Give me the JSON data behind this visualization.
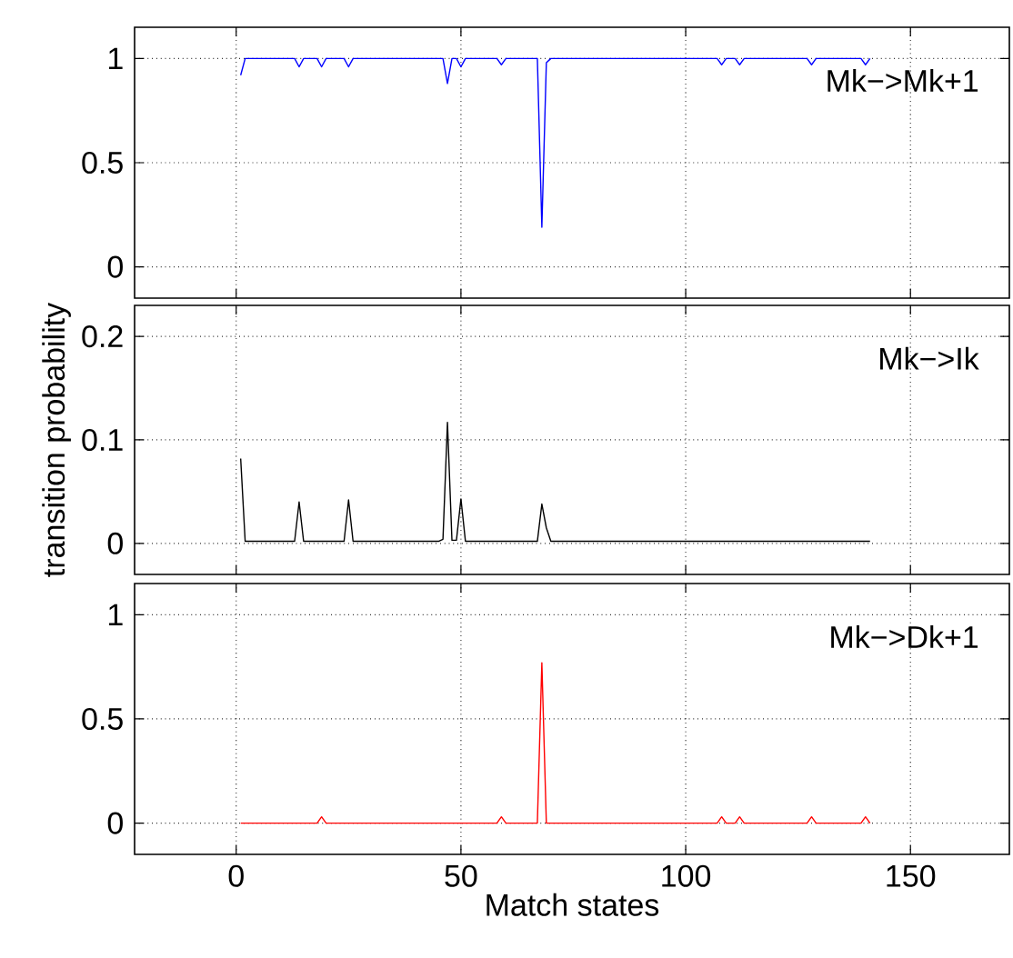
{
  "chart_data": [
    {
      "type": "line",
      "x": [
        1,
        2,
        13,
        14,
        15,
        18,
        19,
        20,
        24,
        25,
        26,
        46,
        47,
        48,
        49,
        50,
        51,
        58,
        59,
        60,
        67,
        68,
        69,
        70,
        107,
        108,
        109,
        111,
        112,
        113,
        127,
        128,
        129,
        139,
        140,
        141
      ],
      "series": [
        {
          "color": "#0000ff",
          "values": [
            0.92,
            1,
            1,
            0.96,
            1,
            1,
            0.96,
            1,
            1,
            0.96,
            1,
            1,
            0.88,
            1,
            1,
            0.96,
            1,
            1,
            0.97,
            1,
            1,
            0.19,
            0.98,
            1,
            1,
            0.97,
            1,
            1,
            0.97,
            1,
            1,
            0.97,
            1,
            1,
            0.97,
            1
          ]
        }
      ],
      "annotations": [
        "Mk−>Mk+1"
      ],
      "xlim": [
        -22.6,
        172
      ],
      "xticks": [
        0,
        50,
        100,
        150
      ],
      "ylim": [
        -0.15,
        1.15
      ],
      "yticks": [
        0,
        0.5,
        1
      ],
      "grid": true,
      "tick_labels": "y"
    },
    {
      "type": "line",
      "x": [
        1,
        2,
        13,
        14,
        15,
        24,
        25,
        26,
        45,
        46,
        47,
        48,
        49,
        50,
        51,
        67,
        68,
        69,
        70,
        141
      ],
      "series": [
        {
          "color": "#000000",
          "values": [
            0.082,
            0.002,
            0.002,
            0.04,
            0.002,
            0.002,
            0.042,
            0.002,
            0.002,
            0.004,
            0.117,
            0.003,
            0.003,
            0.043,
            0.002,
            0.002,
            0.038,
            0.015,
            0.002,
            0.002
          ]
        }
      ],
      "ylabel": "transition probability",
      "annotations": [
        "Mk−>Ik"
      ],
      "xlim": [
        -22.6,
        172
      ],
      "xticks": [
        0,
        50,
        100,
        150
      ],
      "ylim": [
        -0.03,
        0.23
      ],
      "yticks": [
        0,
        0.1,
        0.2
      ],
      "grid": true,
      "tick_labels": "y"
    },
    {
      "type": "line",
      "x": [
        1,
        18,
        19,
        20,
        58,
        59,
        60,
        67,
        68,
        69,
        107,
        108,
        109,
        111,
        112,
        113,
        127,
        128,
        129,
        139,
        140,
        141
      ],
      "series": [
        {
          "color": "#ff0000",
          "values": [
            0,
            0,
            0.03,
            0,
            0,
            0.03,
            0,
            0,
            0.77,
            0,
            0,
            0.03,
            0,
            0,
            0.03,
            0,
            0,
            0.03,
            0,
            0,
            0.03,
            0
          ]
        }
      ],
      "xlabel": "Match states",
      "annotations": [
        "Mk−>Dk+1"
      ],
      "xlim": [
        -22.6,
        172
      ],
      "xticks": [
        0,
        50,
        100,
        150
      ],
      "ylim": [
        -0.15,
        1.15
      ],
      "yticks": [
        0,
        0.5,
        1
      ],
      "grid": true
    }
  ]
}
